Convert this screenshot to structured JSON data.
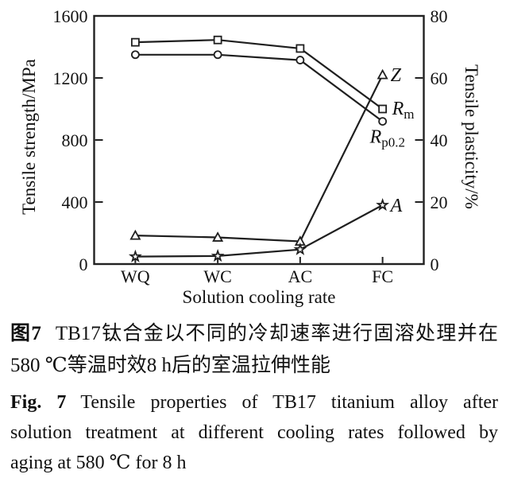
{
  "figure": {
    "caption_zh": {
      "label": "图7",
      "line1": "TB17钛合金以不同的冷却速率进行固溶处理并在",
      "line2": "580 ℃等温时效8 h后的室温拉伸性能"
    },
    "caption_en": {
      "label": "Fig. 7",
      "line1": "Tensile properties of TB17 titanium alloy after",
      "line2": "solution treatment at different cooling rates followed by",
      "line3": "aging at 580 ℃ for 8 h"
    }
  },
  "chart_data": {
    "type": "line",
    "categories": [
      "WQ",
      "WC",
      "AC",
      "FC"
    ],
    "xlabel": "Solution cooling rate",
    "ylabel_left": "Tensile strength/MPa",
    "ylabel_right": "Tensile plasticity/%",
    "ylim_left": [
      0,
      1600
    ],
    "yticks_left": [
      0,
      400,
      800,
      1200,
      1600
    ],
    "ylim_right": [
      0,
      80
    ],
    "yticks_right": [
      0,
      20,
      40,
      60,
      80
    ],
    "grid": false,
    "legend_position": "end-labels-right",
    "series": [
      {
        "name": "Rm",
        "label_main": "R",
        "label_sub": "m",
        "axis": "left",
        "marker": "square",
        "values": [
          1430,
          1445,
          1390,
          1000
        ]
      },
      {
        "name": "Rp0.2",
        "label_main": "R",
        "label_sub": "p0.2",
        "axis": "left",
        "marker": "circle",
        "values": [
          1350,
          1350,
          1315,
          920
        ]
      },
      {
        "name": "Z",
        "label_main": "Z",
        "label_sub": "",
        "axis": "right",
        "marker": "triangle",
        "values": [
          9.2,
          8.6,
          7.3,
          61
        ]
      },
      {
        "name": "A",
        "label_main": "A",
        "label_sub": "",
        "axis": "right",
        "marker": "star",
        "values": [
          2.4,
          2.6,
          4.7,
          19
        ]
      }
    ],
    "colors": {
      "line": "#1f1f1f",
      "frame": "#222222",
      "text": "#111111",
      "marker_fill": "#ffffff"
    }
  }
}
